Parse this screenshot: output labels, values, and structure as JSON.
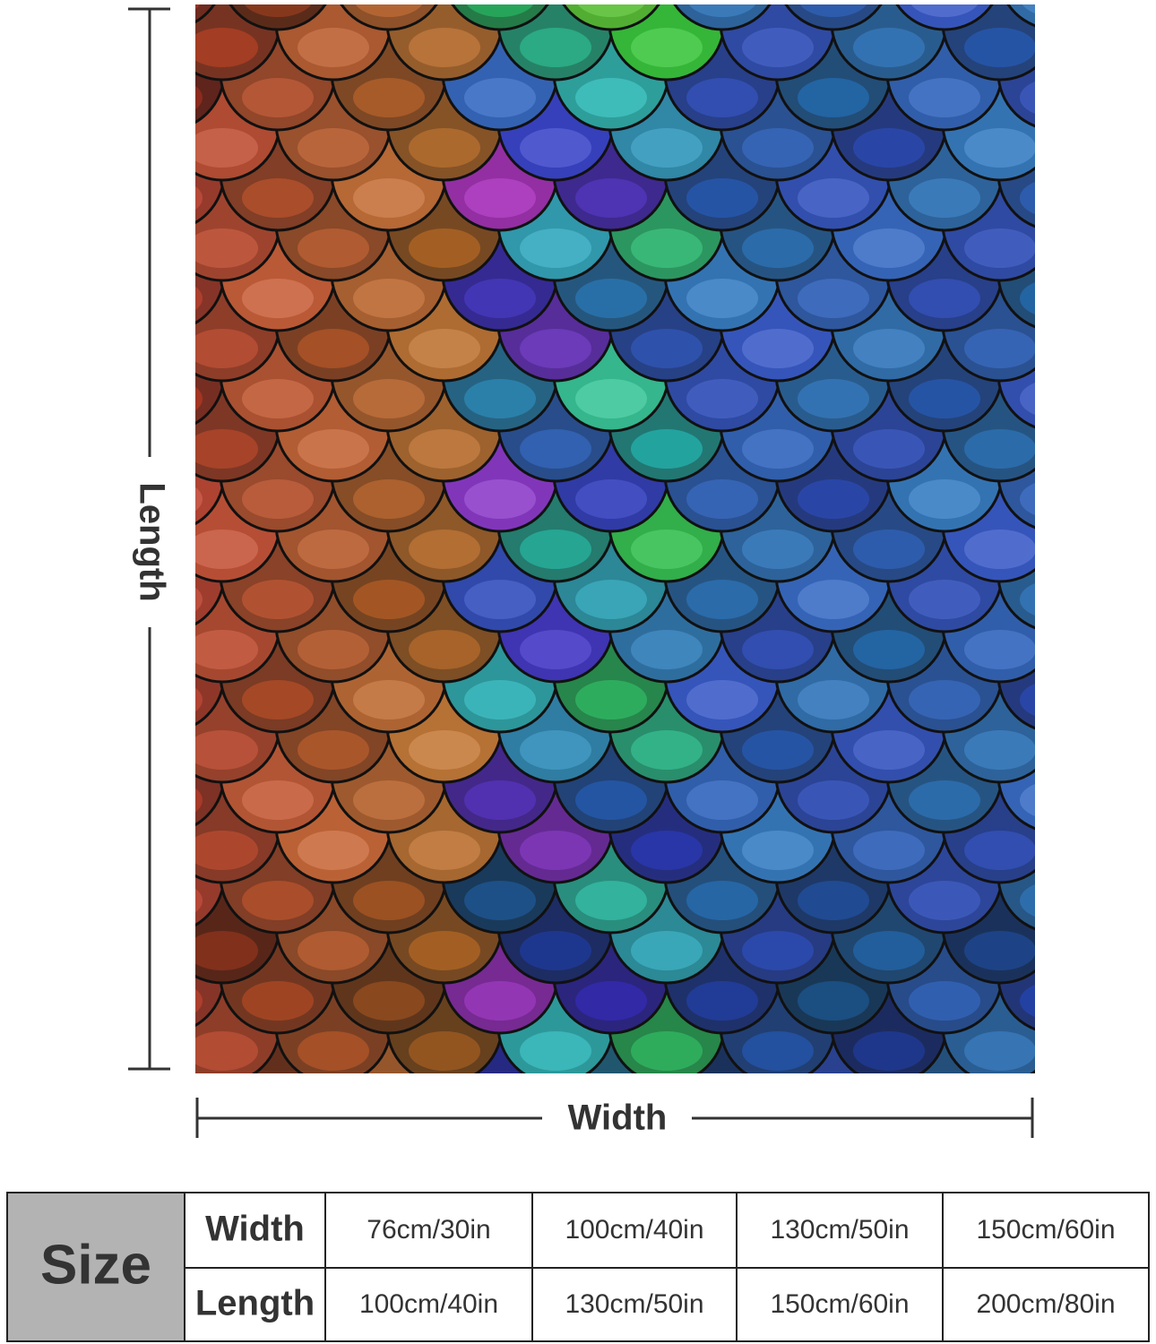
{
  "dimensions": {
    "length": "Length",
    "width": "Width"
  },
  "size_table": {
    "header": "Size",
    "rows": [
      {
        "label": "Width",
        "values": [
          "76cm/30in",
          "100cm/40in",
          "130cm/50in",
          "150cm/60in"
        ]
      },
      {
        "label": "Length",
        "values": [
          "100cm/40in",
          "130cm/50in",
          "150cm/60in",
          "200cm/80in"
        ]
      }
    ]
  }
}
